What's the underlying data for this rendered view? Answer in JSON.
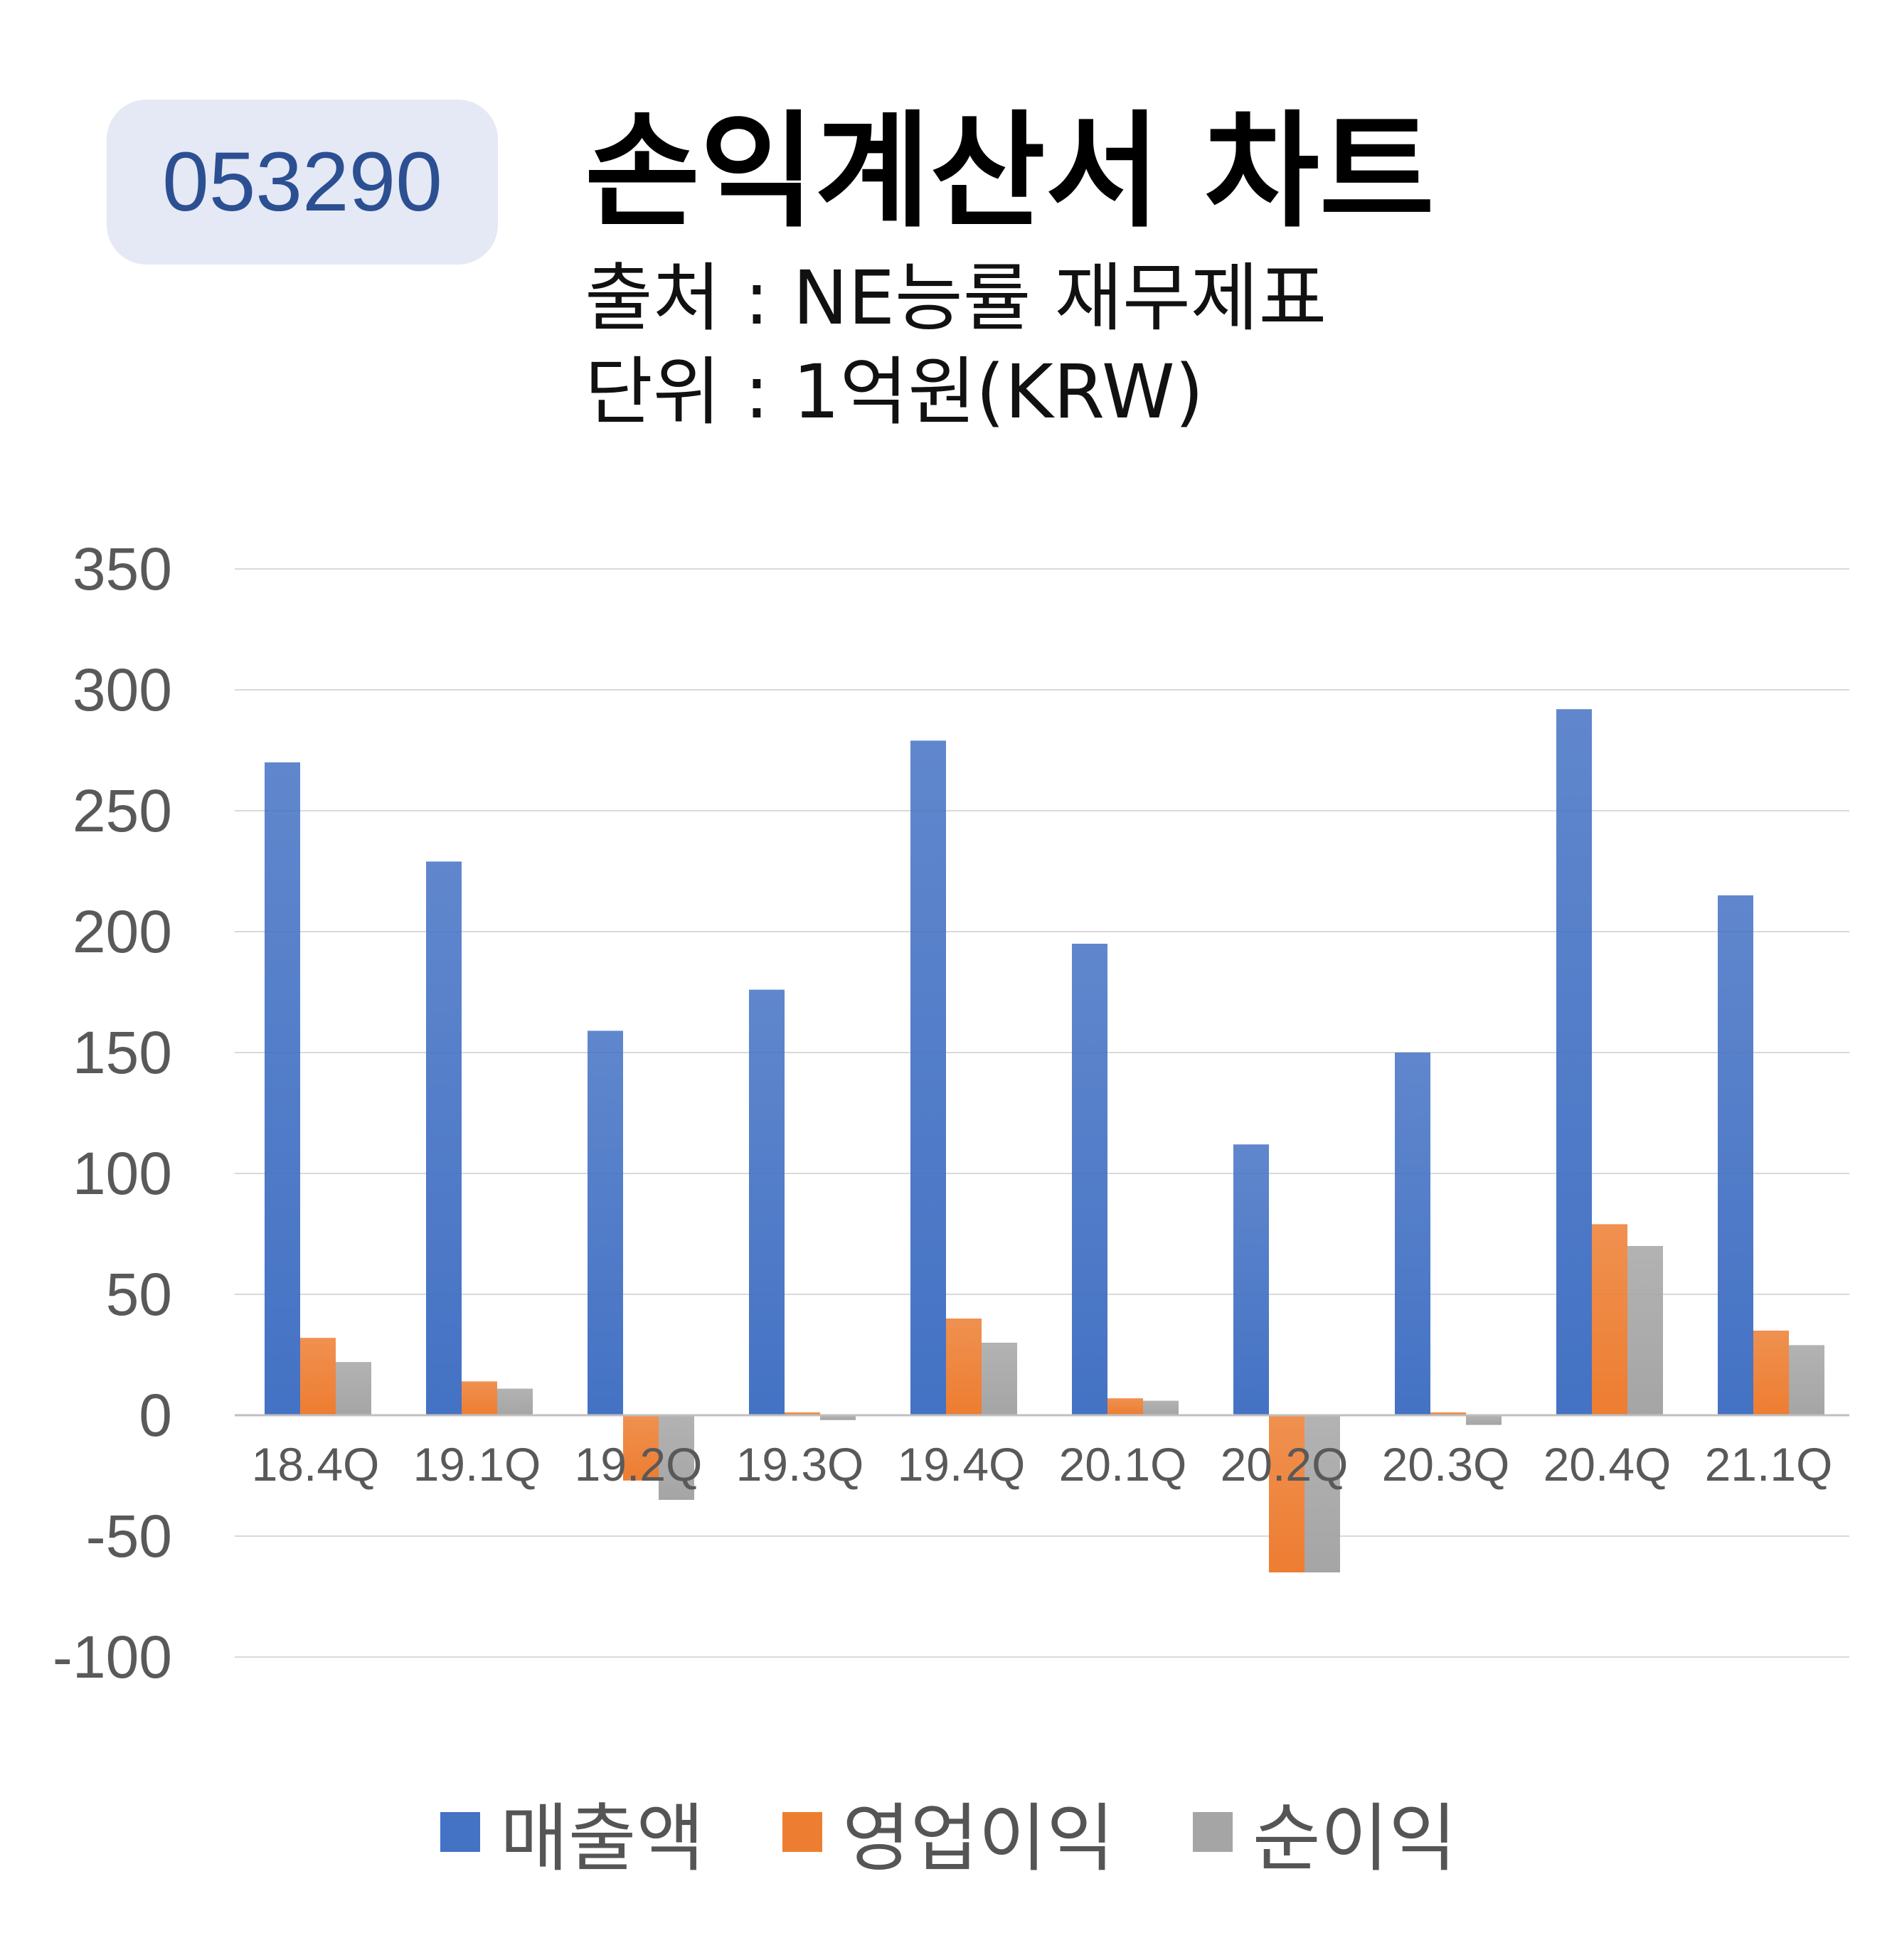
{
  "badge": {
    "code": "053290"
  },
  "header": {
    "title": "손익계산서 차트",
    "source": "출처 : NE능률 재무제표",
    "unit": "단위 : 1억원(KRW)"
  },
  "colors": {
    "sales": "#4472c4",
    "operating": "#ed7d31",
    "net": "#a5a5a5",
    "grid": "#d9d9d9",
    "badge_bg": "#e4e9f5",
    "badge_text": "#2c4f92"
  },
  "chart_data": {
    "type": "bar",
    "title": "",
    "xlabel": "",
    "ylabel": "",
    "ylim": [
      -100,
      350
    ],
    "yticks": [
      "350",
      "300",
      "250",
      "200",
      "150",
      "100",
      "50",
      "0",
      "-50",
      "-100"
    ],
    "categories": [
      "18.4Q",
      "19.1Q",
      "19.2Q",
      "19.3Q",
      "19.4Q",
      "20.1Q",
      "20.2Q",
      "20.3Q",
      "20.4Q",
      "21.1Q"
    ],
    "series": [
      {
        "name": "매출액",
        "color": "#4472c4",
        "values": [
          270,
          229,
          159,
          176,
          279,
          195,
          112,
          150,
          292,
          215
        ]
      },
      {
        "name": "영업이익",
        "color": "#ed7d31",
        "values": [
          32,
          14,
          -27,
          0,
          40,
          7,
          -65,
          1,
          79,
          35
        ]
      },
      {
        "name": "순이익",
        "color": "#a5a5a5",
        "values": [
          22,
          11,
          -35,
          -2,
          30,
          6,
          -65,
          -4,
          70,
          29
        ]
      }
    ],
    "grid": true,
    "legend": "bottom"
  }
}
